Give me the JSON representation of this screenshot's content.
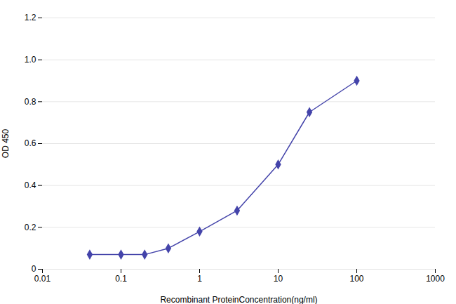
{
  "chart_data": {
    "type": "line",
    "x": [
      0.04,
      0.1,
      0.2,
      0.4,
      1.0,
      3.0,
      10.0,
      25.0,
      100.0
    ],
    "values": [
      0.07,
      0.07,
      0.07,
      0.1,
      0.18,
      0.28,
      0.5,
      0.75,
      0.9
    ],
    "color": "#4444aa",
    "marker": "diamond",
    "xlabel": "Recombinant ProteinConcentration(ng/ml)",
    "ylabel": "OD 450",
    "log": "x",
    "xlim": [
      0.01,
      1000
    ],
    "xticks": [
      0.01,
      0.1,
      1,
      10,
      100,
      1000
    ],
    "ylim": [
      0,
      1.2
    ],
    "yticks": [
      0,
      0.2,
      0.4,
      0.6,
      0.8,
      {
        "value": 1.0,
        "label": "1.0"
      },
      1.2
    ],
    "grid": "y"
  }
}
